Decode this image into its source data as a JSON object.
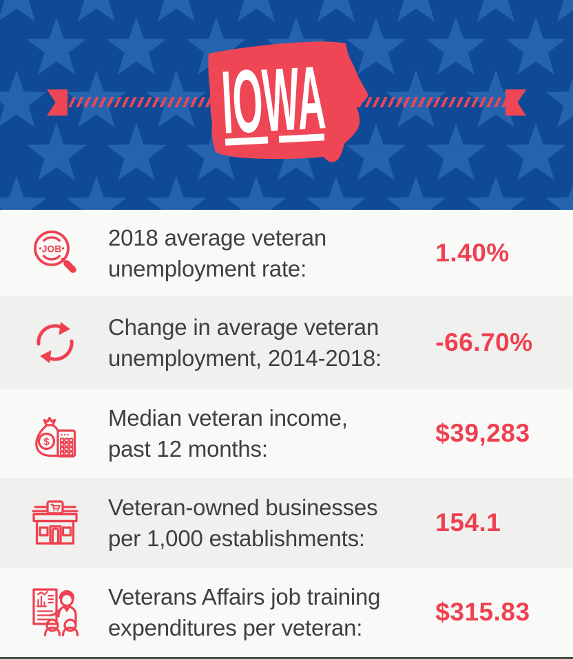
{
  "header": {
    "state_label": "IOWA",
    "colors": {
      "header_blue": "#0e4a96",
      "star_blue": "#2563ae",
      "header_red": "#ef4656",
      "accent_red": "#ee4150"
    }
  },
  "icons": {
    "job_search_text": "JOB",
    "coin_symbol": "$"
  },
  "stats": [
    {
      "icon": "job-search-icon",
      "label_lines": [
        "2018 average veteran",
        "unemployment rate:"
      ],
      "value": "1.40%"
    },
    {
      "icon": "sync-arrows-icon",
      "label_lines": [
        "Change in average veteran",
        "unemployment, 2014-2018:"
      ],
      "value": "-66.70%"
    },
    {
      "icon": "money-bag-calculator-icon",
      "label_lines": [
        "Median veteran income,",
        "past 12 months:"
      ],
      "value": "$39,283"
    },
    {
      "icon": "storefront-icon",
      "label_lines": [
        "Veteran-owned businesses",
        "per 1,000 establishments:"
      ],
      "value": "154.1"
    },
    {
      "icon": "job-training-icon",
      "label_lines": [
        "Veterans Affairs job training",
        "expenditures per veteran:"
      ],
      "value": "$315.83"
    }
  ]
}
